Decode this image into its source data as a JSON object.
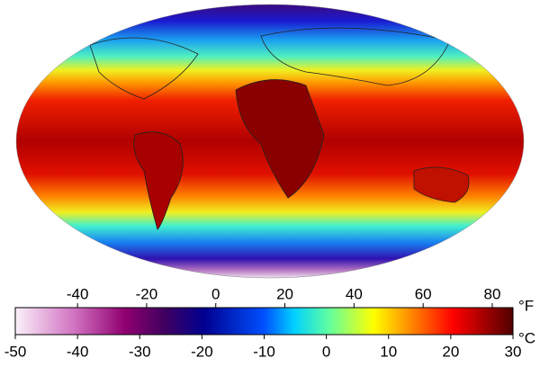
{
  "colorbar": {
    "fahrenheit": {
      "unit": "°F",
      "lim": [
        -58,
        86
      ],
      "ticks": [
        -40,
        -20,
        0,
        20,
        40,
        60,
        80
      ]
    },
    "celsius": {
      "unit": "°C",
      "lim": [
        -50,
        30
      ],
      "ticks": [
        -50,
        -40,
        -30,
        -20,
        -10,
        0,
        10,
        20,
        30
      ]
    }
  }
}
